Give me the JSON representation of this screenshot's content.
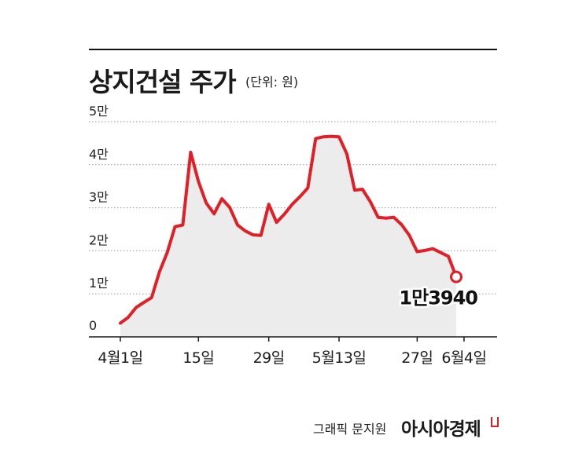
{
  "header": {
    "title": "상지건설 주가",
    "unit": "(단위: 원)"
  },
  "footer": {
    "credit": "그래픽 문지원",
    "brand": "아시아경제"
  },
  "colors": {
    "line": "#e01f26",
    "area": "#ececec",
    "grid": "#9a9a9a",
    "axis": "#1a1a1a"
  },
  "chart_data": {
    "type": "area",
    "ylim": [
      0,
      50000
    ],
    "y_ticks": [
      {
        "value": 0,
        "label": "0"
      },
      {
        "value": 10000,
        "label": "1만"
      },
      {
        "value": 20000,
        "label": "2만"
      },
      {
        "value": 30000,
        "label": "3만"
      },
      {
        "value": 40000,
        "label": "4만"
      },
      {
        "value": 50000,
        "label": "5만"
      }
    ],
    "x_ticks": [
      {
        "index": 0,
        "label": "4월1일"
      },
      {
        "index": 10,
        "label": "15일"
      },
      {
        "index": 19,
        "label": "29일"
      },
      {
        "index": 28,
        "label": "5월13일"
      },
      {
        "index": 38,
        "label": "27일"
      },
      {
        "index": 44,
        "label": "6월4일"
      }
    ],
    "grid": true,
    "end_annotation": "1만3940",
    "values": [
      3200,
      4500,
      6800,
      8000,
      9100,
      15100,
      19600,
      25600,
      26000,
      42900,
      36100,
      31100,
      28600,
      32100,
      30100,
      26000,
      24600,
      23700,
      23600,
      30800,
      26600,
      28500,
      30800,
      32600,
      34600,
      46100,
      46500,
      46600,
      46500,
      42500,
      34100,
      34300,
      31400,
      27800,
      27600,
      27800,
      26100,
      23600,
      19800,
      20100,
      20500,
      19600,
      18700,
      13940
    ]
  }
}
